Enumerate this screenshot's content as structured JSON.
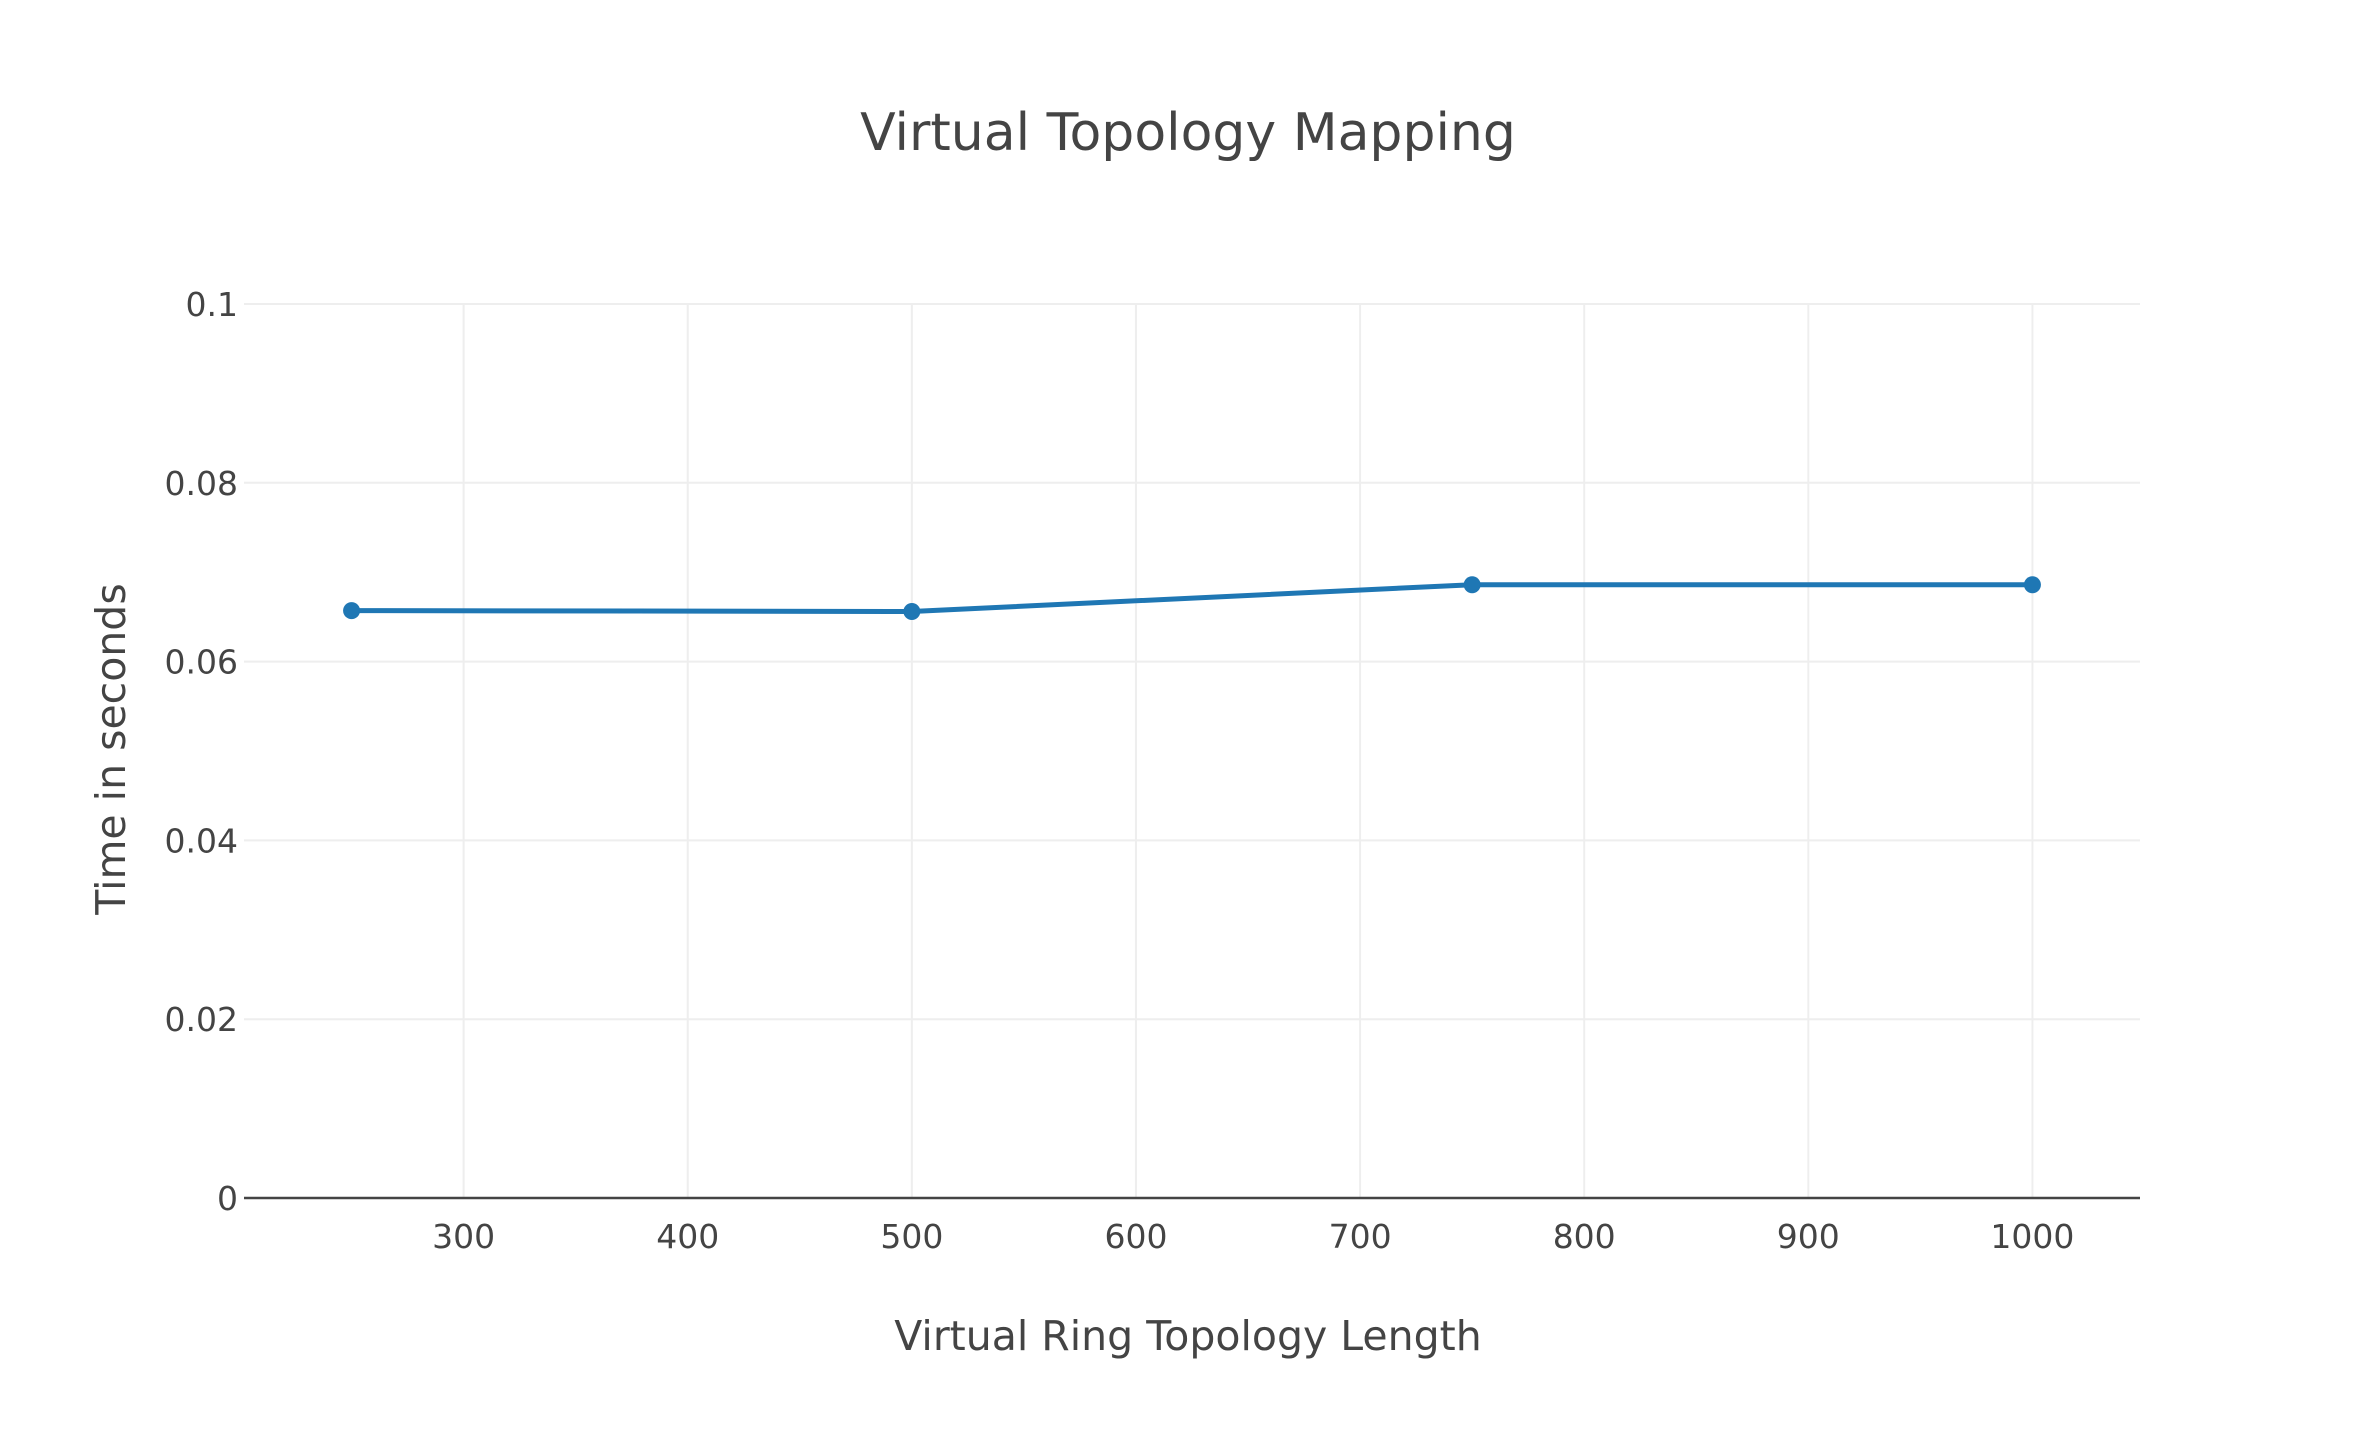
{
  "chart_data": {
    "type": "line",
    "title": "Virtual Topology Mapping",
    "xlabel": "Virtual Ring Topology Length",
    "ylabel": "Time in seconds",
    "xlim": [
      202,
      1048
    ],
    "ylim": [
      0,
      0.1
    ],
    "x_ticks": [
      300,
      400,
      500,
      600,
      700,
      800,
      900,
      1000
    ],
    "x_tick_labels": [
      "300",
      "400",
      "500",
      "600",
      "700",
      "800",
      "900",
      "1000"
    ],
    "y_ticks": [
      0,
      0.02,
      0.04,
      0.06,
      0.08,
      0.1
    ],
    "y_tick_labels": [
      "0",
      "0.02",
      "0.04",
      "0.06",
      "0.08",
      "0.1"
    ],
    "grid": true,
    "series": [
      {
        "x": [
          250,
          500,
          750,
          1000
        ],
        "y": [
          0.0657,
          0.0656,
          0.0686,
          0.0686
        ],
        "color": "#1f77b4",
        "markers": true
      }
    ]
  }
}
